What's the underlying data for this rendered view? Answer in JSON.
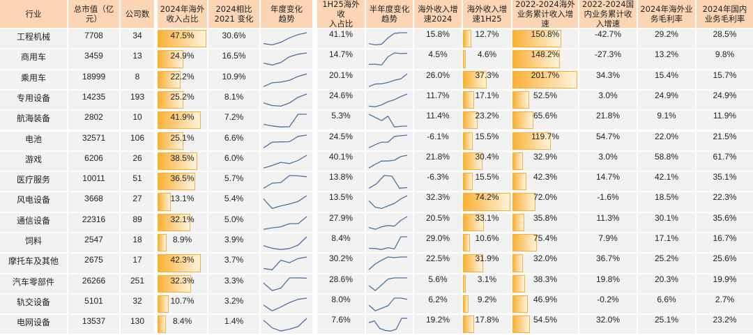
{
  "headers": [
    "行业",
    "总市值（亿元）",
    "公司数",
    "2024年海外收入占比",
    "2024相比2021 变化",
    "年度变化趋势",
    "1H25海外收入占比",
    "半年度变化趋势",
    "海外收入增速2024",
    "海外收入增速1H25",
    "2022-2024海外业务累计收入增速",
    "2022-2024国内业务累计收入增速",
    "2024年海外业务毛利率",
    "2024年国内业务毛利率"
  ],
  "header_lines": [
    [
      "行业"
    ],
    [
      "总市值（亿",
      "元）"
    ],
    [
      "公司数"
    ],
    [
      "2024年海外",
      "收入占比"
    ],
    [
      "2024相比",
      "2021 变化"
    ],
    [
      "年度变化",
      "趋势"
    ],
    [
      "1H25海外收",
      "入占比"
    ],
    [
      "半年度变化",
      "趋势"
    ],
    [
      "海外收入增",
      "速2024"
    ],
    [
      "海外收入增",
      "速1H25"
    ],
    [
      "2022-2024海外",
      "业务累计收入增",
      "速"
    ],
    [
      "2022-2024国",
      "内业务累计收",
      "入增速"
    ],
    [
      "2024年海外业",
      "务毛利率"
    ],
    [
      "2024年国内",
      "业务毛利率"
    ]
  ],
  "colors": {
    "header_bg": "#fcd5b5",
    "cell_bg": "#f2f2f2",
    "bar_start": "#fbb034",
    "bar_end": "#fff3dc",
    "bar_border": "#f7b031",
    "sparkline": "#4a6fa5"
  },
  "rows": [
    {
      "industry": "工程机械",
      "market_cap": "7708",
      "companies": "34",
      "overseas_share_2024": "47.5%",
      "change_vs_2021": "30.6%",
      "annual_trend": [
        0.15,
        0.05,
        0.25,
        0.6,
        0.85,
        1.0
      ],
      "overseas_share_1h25": "41.1%",
      "half_trend": [
        0.15,
        0.05,
        0.1,
        0.6,
        0.95,
        1.0,
        1.0
      ],
      "growth_2024": "15.8%",
      "growth_1h25": "12.7%",
      "overseas_cum_growth": "150.8%",
      "domestic_cum_growth": "-42.7%",
      "overseas_margin": "29.2%",
      "domestic_margin": "28.5%"
    },
    {
      "industry": "商用车",
      "market_cap": "3459",
      "companies": "13",
      "overseas_share_2024": "24.9%",
      "change_vs_2021": "16.5%",
      "annual_trend": [
        0.2,
        0.05,
        0.25,
        0.7,
        0.9,
        1.0
      ],
      "overseas_share_1h25": "14.7%",
      "half_trend": [
        0.1,
        0.12,
        0.05,
        0.7,
        1.0,
        0.95,
        0.97
      ],
      "growth_2024": "4.5%",
      "growth_1h25": "4.6%",
      "overseas_cum_growth": "148.2%",
      "domestic_cum_growth": "-27.3%",
      "overseas_margin": "13.2%",
      "domestic_margin": "9.8%"
    },
    {
      "industry": "乘用车",
      "market_cap": "18999",
      "companies": "8",
      "overseas_share_2024": "22.2%",
      "change_vs_2021": "10.9%",
      "annual_trend": [
        0.0,
        0.3,
        0.35,
        0.5,
        0.8,
        1.0
      ],
      "overseas_share_1h25": "20.1%",
      "half_trend": [
        0.0,
        0.2,
        0.22,
        0.32,
        0.5,
        0.6,
        1.0
      ],
      "growth_2024": "26.0%",
      "growth_1h25": "37.3%",
      "overseas_cum_growth": "201.7%",
      "domestic_cum_growth": "34.3%",
      "overseas_margin": "15.4%",
      "domestic_margin": "15.7%"
    },
    {
      "industry": "专用设备",
      "market_cap": "14235",
      "companies": "193",
      "overseas_share_2024": "25.2%",
      "change_vs_2021": "8.1%",
      "annual_trend": [
        0.3,
        0.1,
        0.05,
        0.3,
        0.75,
        1.0
      ],
      "overseas_share_1h25": "24.6%",
      "half_trend": [
        0.05,
        0.0,
        0.15,
        0.4,
        0.55,
        0.8,
        1.0
      ],
      "growth_2024": "11.7%",
      "growth_1h25": "17.1%",
      "overseas_cum_growth": "52.5%",
      "domestic_cum_growth": "3.0%",
      "overseas_margin": "24.9%",
      "domestic_margin": "24.9%"
    },
    {
      "industry": "航海装备",
      "market_cap": "2802",
      "companies": "10",
      "overseas_share_2024": "41.9%",
      "change_vs_2021": "7.2%",
      "annual_trend": [
        0.2,
        0.08,
        0.0,
        0.02,
        1.0,
        1.0
      ],
      "overseas_share_1h25": "5.3%",
      "half_trend": [
        1.0,
        0.75,
        0.5,
        0.85,
        0.0,
        0.05,
        0.07
      ],
      "growth_2024": "11.4%",
      "growth_1h25": "23.2%",
      "overseas_cum_growth": "65.6%",
      "domestic_cum_growth": "21.8%",
      "overseas_margin": "9.1%",
      "domestic_margin": "11.9%"
    },
    {
      "industry": "电池",
      "market_cap": "32571",
      "companies": "106",
      "overseas_share_2024": "25.1%",
      "change_vs_2021": "6.6%",
      "annual_trend": [
        0.0,
        0.45,
        0.47,
        0.48,
        0.9,
        1.0
      ],
      "overseas_share_1h25": "24.5%",
      "half_trend": [
        0.0,
        0.25,
        0.45,
        0.45,
        0.9,
        0.95,
        1.0
      ],
      "growth_2024": "-6.1%",
      "growth_1h25": "15.5%",
      "overseas_cum_growth": "119.7%",
      "domestic_cum_growth": "54.7%",
      "overseas_margin": "22.0%",
      "domestic_margin": "21.5%"
    },
    {
      "industry": "游戏",
      "market_cap": "6206",
      "companies": "26",
      "overseas_share_2024": "38.5%",
      "change_vs_2021": "6.0%",
      "annual_trend": [
        0.0,
        0.2,
        0.45,
        0.35,
        0.6,
        1.0
      ],
      "overseas_share_1h25": "40.1%",
      "half_trend": [
        0.0,
        0.3,
        0.55,
        0.55,
        0.62,
        0.9,
        1.0
      ],
      "growth_2024": "21.8%",
      "growth_1h25": "30.4%",
      "overseas_cum_growth": "32.9%",
      "domestic_cum_growth": "3.0%",
      "overseas_margin": "58.8%",
      "domestic_margin": "61.7%"
    },
    {
      "industry": "医疗服务",
      "market_cap": "10011",
      "companies": "51",
      "overseas_share_2024": "36.5%",
      "change_vs_2021": "5.7%",
      "annual_trend": [
        0.0,
        0.4,
        0.45,
        1.0,
        0.97,
        0.9
      ],
      "overseas_share_1h25": "13.8%",
      "half_trend": [
        0.0,
        0.35,
        1.0,
        0.95,
        0.0,
        0.05
      ],
      "growth_2024": "-6.3%",
      "growth_1h25": "15.5%",
      "overseas_cum_growth": "42.3%",
      "domestic_cum_growth": "14.7%",
      "overseas_margin": "42.1%",
      "domestic_margin": "35.1%"
    },
    {
      "industry": "风电设备",
      "market_cap": "3668",
      "companies": "27",
      "overseas_share_2024": "13.1%",
      "change_vs_2021": "5.4%",
      "annual_trend": [
        0.75,
        0.0,
        0.2,
        0.35,
        0.55,
        1.0
      ],
      "overseas_share_1h25": "13.5%",
      "half_trend": [
        0.6,
        0.1,
        0.0,
        0.2,
        0.4,
        0.75,
        1.0
      ],
      "growth_2024": "32.3%",
      "growth_1h25": "74.2%",
      "overseas_cum_growth": "72.0%",
      "domestic_cum_growth": "-1.6%",
      "overseas_margin": "18.5%",
      "domestic_margin": "22.3%"
    },
    {
      "industry": "通信设备",
      "market_cap": "22316",
      "companies": "89",
      "overseas_share_2024": "32.1%",
      "change_vs_2021": "5.0%",
      "annual_trend": [
        0.0,
        0.12,
        0.2,
        0.45,
        0.45,
        1.0
      ],
      "overseas_share_1h25": "27.9%",
      "half_trend": [
        0.15,
        0.0,
        0.2,
        0.3,
        0.25,
        0.7,
        1.0
      ],
      "growth_2024": "20.5%",
      "growth_1h25": "33.1%",
      "overseas_cum_growth": "35.8%",
      "domestic_cum_growth": "11.3%",
      "overseas_margin": "30.1%",
      "domestic_margin": "35.6%"
    },
    {
      "industry": "饲料",
      "market_cap": "2547",
      "companies": "18",
      "overseas_share_2024": "8.9%",
      "change_vs_2021": "3.9%",
      "annual_trend": [
        0.3,
        0.1,
        0.0,
        0.08,
        0.35,
        1.0
      ],
      "overseas_share_1h25": "8.4%",
      "half_trend": [
        0.1,
        0.08,
        0.0,
        0.15,
        0.05,
        1.0,
        1.0
      ],
      "growth_2024": "29.0%",
      "growth_1h25": "10.6%",
      "overseas_cum_growth": "75.4%",
      "domestic_cum_growth": "7.9%",
      "overseas_margin": "17.1%",
      "domestic_margin": "16.7%"
    },
    {
      "industry": "摩托车及其他",
      "market_cap": "2675",
      "companies": "17",
      "overseas_share_2024": "42.3%",
      "change_vs_2021": "3.7%",
      "annual_trend": [
        0.1,
        0.0,
        0.75,
        0.55,
        0.88,
        1.0
      ],
      "overseas_share_1h25": "30.2%",
      "half_trend": [
        0.0,
        0.45,
        0.75,
        1.0,
        0.95,
        1.0,
        1.0
      ],
      "growth_2024": "22.5%",
      "growth_1h25": "31.9%",
      "overseas_cum_growth": "32.0%",
      "domestic_cum_growth": "36.7%",
      "overseas_margin": "25.2%",
      "domestic_margin": "25.6%"
    },
    {
      "industry": "汽车零部件",
      "market_cap": "26266",
      "companies": "251",
      "overseas_share_2024": "32.3%",
      "change_vs_2021": "3.3%",
      "annual_trend": [
        0.6,
        0.0,
        0.2,
        1.0,
        1.0,
        0.98
      ],
      "overseas_share_1h25": "28.6%",
      "half_trend": [
        0.4,
        0.0,
        0.45,
        0.9,
        1.0,
        1.0,
        1.0
      ],
      "growth_2024": "5.6%",
      "growth_1h25": "3.1%",
      "overseas_cum_growth": "38.3%",
      "domestic_cum_growth": "19.8%",
      "overseas_margin": "20.3%",
      "domestic_margin": "19.9%"
    },
    {
      "industry": "轨交设备",
      "market_cap": "5101",
      "companies": "32",
      "overseas_share_2024": "10.7%",
      "change_vs_2021": "3.2%",
      "annual_trend": [
        0.45,
        0.0,
        0.3,
        0.65,
        0.9,
        1.0
      ],
      "overseas_share_1h25": "8.0%",
      "half_trend": [
        0.45,
        0.0,
        0.2,
        0.4,
        1.0,
        1.0,
        0.9
      ],
      "growth_2024": "6.2%",
      "growth_1h25": "9.2%",
      "overseas_cum_growth": "46.9%",
      "domestic_cum_growth": "-0.2%",
      "overseas_margin": "6.6%",
      "domestic_margin": "2.7%"
    },
    {
      "industry": "电网设备",
      "market_cap": "13537",
      "companies": "130",
      "overseas_share_2024": "8.4%",
      "change_vs_2021": "1.4%",
      "annual_trend": [
        0.85,
        0.25,
        0.0,
        0.15,
        0.35,
        1.0
      ],
      "overseas_share_1h25": "7.6%",
      "half_trend": [
        0.65,
        0.8,
        0.2,
        0.05,
        0.0,
        0.15,
        1.0,
        1.0
      ],
      "growth_2024": "19.2%",
      "growth_1h25": "17.8%",
      "overseas_cum_growth": "54.5%",
      "domestic_cum_growth": "32.0%",
      "overseas_margin": "25.1%",
      "domestic_margin": "23.2%"
    }
  ],
  "chart_data": {
    "type": "table",
    "title": "",
    "columns": [
      "行业",
      "总市值（亿元）",
      "公司数",
      "2024年海外收入占比",
      "2024相比2021 变化",
      "年度变化趋势",
      "1H25海外收入占比",
      "半年度变化趋势",
      "海外收入增速2024",
      "海外收入增速1H25",
      "2022-2024海外业务累计收入增速",
      "2022-2024国内业务累计收入增速",
      "2024年海外业务毛利率",
      "2024年国内业务毛利率"
    ],
    "categories": [
      "工程机械",
      "商用车",
      "乘用车",
      "专用设备",
      "航海装备",
      "电池",
      "游戏",
      "医疗服务",
      "风电设备",
      "通信设备",
      "饲料",
      "摩托车及其他",
      "汽车零部件",
      "轨交设备",
      "电网设备"
    ],
    "series": [
      {
        "name": "总市值（亿元）",
        "values": [
          7708,
          3459,
          18999,
          14235,
          2802,
          32571,
          6206,
          10011,
          3668,
          22316,
          2547,
          2675,
          26266,
          5101,
          13537
        ]
      },
      {
        "name": "公司数",
        "values": [
          34,
          13,
          8,
          193,
          10,
          106,
          26,
          51,
          27,
          89,
          18,
          17,
          251,
          32,
          130
        ]
      },
      {
        "name": "2024年海外收入占比(%)",
        "values": [
          47.5,
          24.9,
          22.2,
          25.2,
          41.9,
          25.1,
          38.5,
          36.5,
          13.1,
          32.1,
          8.9,
          42.3,
          32.3,
          10.7,
          8.4
        ],
        "style": "data-bar"
      },
      {
        "name": "2024相比2021 变化(%)",
        "values": [
          30.6,
          16.5,
          10.9,
          8.1,
          7.2,
          6.6,
          6.0,
          5.7,
          5.4,
          5.0,
          3.9,
          3.7,
          3.3,
          3.2,
          1.4
        ]
      },
      {
        "name": "1H25海外收入占比(%)",
        "values": [
          41.1,
          14.7,
          20.1,
          24.6,
          5.3,
          24.5,
          40.1,
          13.8,
          13.5,
          27.9,
          8.4,
          30.2,
          28.6,
          8.0,
          7.6
        ]
      },
      {
        "name": "海外收入增速2024(%)",
        "values": [
          15.8,
          4.5,
          26.0,
          11.7,
          11.4,
          -6.1,
          21.8,
          -6.3,
          32.3,
          20.5,
          29.0,
          22.5,
          5.6,
          6.2,
          19.2
        ]
      },
      {
        "name": "海外收入增速1H25(%)",
        "values": [
          12.7,
          4.6,
          37.3,
          17.1,
          23.2,
          15.5,
          30.4,
          15.5,
          74.2,
          33.1,
          10.6,
          31.9,
          3.1,
          9.2,
          17.8
        ],
        "style": "data-bar"
      },
      {
        "name": "2022-2024海外业务累计收入增速(%)",
        "values": [
          150.8,
          148.2,
          201.7,
          52.5,
          65.6,
          119.7,
          32.9,
          42.3,
          72.0,
          35.8,
          75.4,
          32.0,
          38.3,
          46.9,
          54.5
        ],
        "style": "data-bar"
      },
      {
        "name": "2022-2024国内业务累计收入增速(%)",
        "values": [
          -42.7,
          -27.3,
          34.3,
          3.0,
          21.8,
          54.7,
          3.0,
          14.7,
          -1.6,
          11.3,
          7.9,
          36.7,
          19.8,
          -0.2,
          32.0
        ]
      },
      {
        "name": "2024年海外业务毛利率(%)",
        "values": [
          29.2,
          13.2,
          15.4,
          24.9,
          9.1,
          22.0,
          58.8,
          42.1,
          18.5,
          30.1,
          17.1,
          25.2,
          20.3,
          6.6,
          25.1
        ]
      },
      {
        "name": "2024年国内业务毛利率(%)",
        "values": [
          28.5,
          9.8,
          15.7,
          24.9,
          11.9,
          21.5,
          61.7,
          35.1,
          22.3,
          35.6,
          16.7,
          25.6,
          19.9,
          2.7,
          23.2
        ]
      }
    ],
    "sparkline_columns": [
      "年度变化趋势",
      "半年度变化趋势"
    ],
    "bar_max": {
      "2024年海外收入占比": 47.5,
      "海外收入增速1H25": 74.2,
      "2022-2024海外业务累计收入增速": 201.7
    }
  }
}
